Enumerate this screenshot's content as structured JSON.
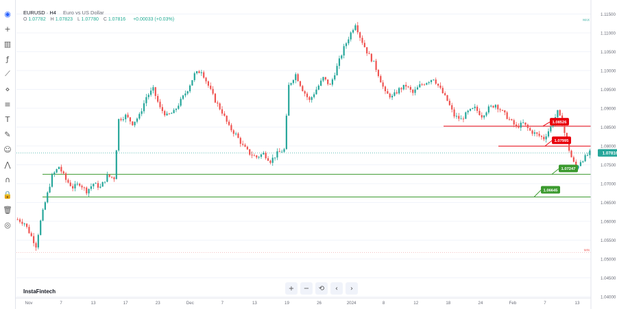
{
  "legend": {
    "symbol": "EURUSD · H4",
    "description": "Euro vs US Dollar",
    "o_label": "O",
    "o_value": "1.07782",
    "h_label": "H",
    "h_value": "1.07823",
    "l_label": "L",
    "l_value": "1.07780",
    "c_label": "C",
    "c_value": "1.07816",
    "change": "+0.00033 (+0.03%)"
  },
  "brand": "InstaFintech",
  "nav_buttons": [
    "+",
    "−",
    "⟲",
    "‹",
    "›"
  ],
  "toolbar_icons": [
    "logo-icon",
    "crosshair-icon",
    "candles-icon",
    "fx-icon",
    "trend-line-icon",
    "pattern-icon",
    "fib-icon",
    "text-icon",
    "brush-icon",
    "emoji-icon",
    "measure-icon",
    "magnet-icon",
    "lock-drawing-icon",
    "trash-icon",
    "eye-icon"
  ],
  "colors": {
    "up": "#26a69a",
    "down": "#ef5350",
    "support": "#3b9a2e",
    "resistance": "#e8000b",
    "price": "#26a69a",
    "grid": "#f0f3fa"
  },
  "chart_data": {
    "type": "candlestick",
    "price_axis_ticks": [
      "1.11500",
      "1.11000",
      "1.10500",
      "1.10000",
      "1.09500",
      "1.09000",
      "1.08500",
      "1.08000",
      "1.07500",
      "1.07000",
      "1.06500",
      "1.06000",
      "1.05500",
      "1.05000",
      "1.04500",
      "1.04000"
    ],
    "time_axis_ticks": [
      "Nov",
      "7",
      "13",
      "17",
      "23",
      "Dec",
      "7",
      "13",
      "19",
      "26",
      "2024",
      "8",
      "12",
      "18",
      "24",
      "Feb",
      "7",
      "13"
    ],
    "ylim": [
      1.04,
      1.118
    ],
    "current_price": 1.07816,
    "current_price_label": "1.07816",
    "high_marker_label": "MAX",
    "low_marker_label": "MIN",
    "close_path": [
      [
        0,
        1.0605
      ],
      [
        3,
        1.0595
      ],
      [
        6,
        1.056
      ],
      [
        8,
        1.0535
      ],
      [
        10,
        1.06
      ],
      [
        12,
        1.065
      ],
      [
        15,
        1.072
      ],
      [
        18,
        1.0745
      ],
      [
        21,
        1.071
      ],
      [
        24,
        1.069
      ],
      [
        27,
        1.07
      ],
      [
        30,
        1.068
      ],
      [
        33,
        1.07
      ],
      [
        36,
        1.069
      ],
      [
        39,
        1.072
      ],
      [
        42,
        1.0715
      ],
      [
        44,
        1.087
      ],
      [
        47,
        1.088
      ],
      [
        50,
        1.086
      ],
      [
        53,
        1.088
      ],
      [
        56,
        1.093
      ],
      [
        59,
        1.095
      ],
      [
        62,
        1.09
      ],
      [
        65,
        1.088
      ],
      [
        68,
        1.089
      ],
      [
        71,
        1.092
      ],
      [
        74,
        1.095
      ],
      [
        77,
        1.099
      ],
      [
        80,
        1.1
      ],
      [
        83,
        1.096
      ],
      [
        86,
        1.092
      ],
      [
        89,
        1.089
      ],
      [
        92,
        1.085
      ],
      [
        95,
        1.083
      ],
      [
        98,
        1.08
      ],
      [
        101,
        1.078
      ],
      [
        104,
        1.077
      ],
      [
        107,
        1.078
      ],
      [
        110,
        1.076
      ],
      [
        113,
        1.078
      ],
      [
        116,
        1.079
      ],
      [
        118,
        1.096
      ],
      [
        121,
        1.099
      ],
      [
        124,
        1.095
      ],
      [
        127,
        1.092
      ],
      [
        130,
        1.095
      ],
      [
        133,
        1.098
      ],
      [
        136,
        1.096
      ],
      [
        139,
        1.101
      ],
      [
        142,
        1.106
      ],
      [
        145,
        1.11
      ],
      [
        147,
        1.1125
      ],
      [
        149,
        1.109
      ],
      [
        152,
        1.105
      ],
      [
        155,
        1.102
      ],
      [
        157,
        1.099
      ],
      [
        160,
        1.094
      ],
      [
        163,
        1.093
      ],
      [
        166,
        1.095
      ],
      [
        169,
        1.096
      ],
      [
        172,
        1.094
      ],
      [
        175,
        1.096
      ],
      [
        178,
        1.097
      ],
      [
        181,
        1.098
      ],
      [
        184,
        1.095
      ],
      [
        187,
        1.092
      ],
      [
        190,
        1.088
      ],
      [
        193,
        1.087
      ],
      [
        196,
        1.089
      ],
      [
        199,
        1.09
      ],
      [
        202,
        1.088
      ],
      [
        205,
        1.09
      ],
      [
        208,
        1.091
      ],
      [
        211,
        1.089
      ],
      [
        214,
        1.087
      ],
      [
        217,
        1.085
      ],
      [
        220,
        1.086
      ],
      [
        223,
        1.084
      ],
      [
        226,
        1.083
      ],
      [
        229,
        1.082
      ],
      [
        232,
        1.085
      ],
      [
        235,
        1.089
      ],
      [
        237,
        1.086
      ],
      [
        239,
        1.081
      ],
      [
        241,
        1.077
      ],
      [
        243,
        1.074
      ],
      [
        245,
        1.076
      ],
      [
        247,
        1.077
      ],
      [
        249,
        1.0782
      ]
    ],
    "levels": [
      {
        "name": "resistance-2",
        "value": 1.08526,
        "label": "1.08526",
        "kind": "resistance"
      },
      {
        "name": "resistance-1",
        "value": 1.07995,
        "label": "1.07995",
        "kind": "resistance"
      },
      {
        "name": "support-1",
        "value": 1.07247,
        "label": "1.07247",
        "kind": "support"
      },
      {
        "name": "support-2",
        "value": 1.06645,
        "label": "1.06645",
        "kind": "support"
      }
    ],
    "x_count": 250
  }
}
